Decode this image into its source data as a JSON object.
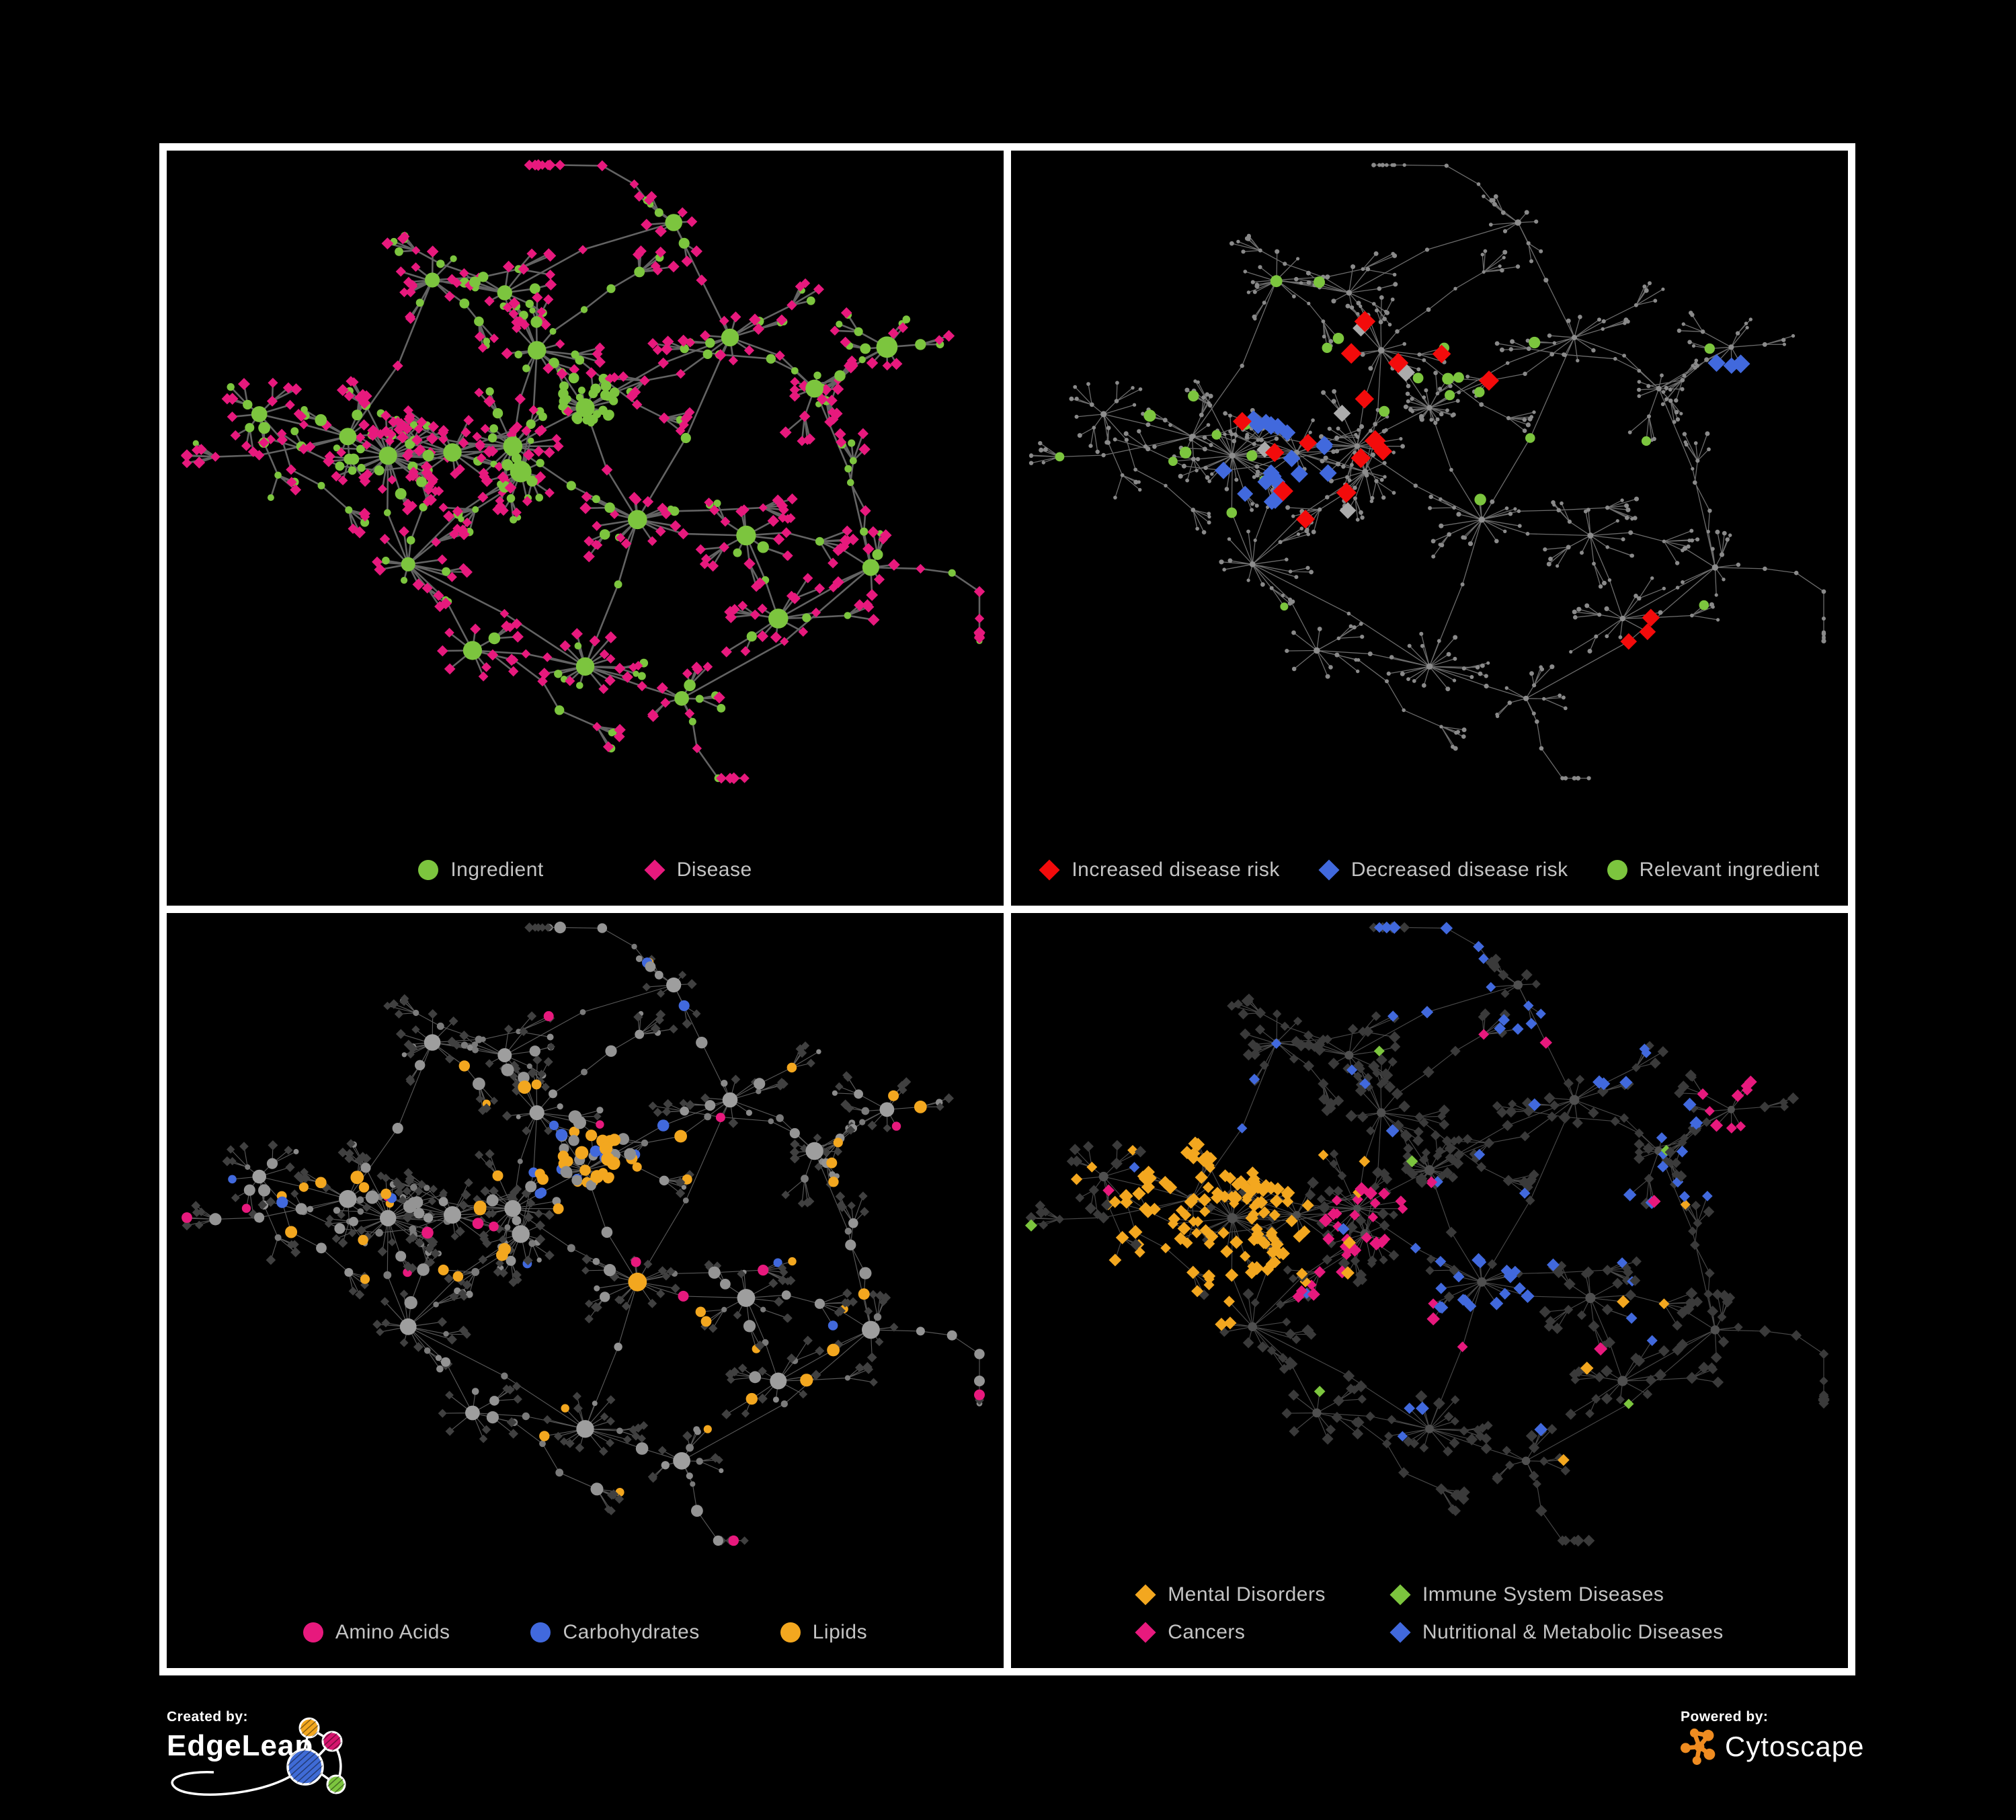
{
  "page": {
    "background": "#000000",
    "frame_color": "#ffffff"
  },
  "palette": {
    "green": "#7cc53e",
    "magenta": "#e7197d",
    "red": "#f30b0b",
    "blue": "#4169dd",
    "amber": "#f3a71f",
    "silver": "#ababab",
    "legend_text": "#c4c4c4"
  },
  "footer": {
    "created_by_label": "Created by:",
    "created_by_brand": "EdgeLeap",
    "powered_by_label": "Powered by:",
    "powered_by_brand": "Cytoscape",
    "cytoscape_logo_color": "#ef8c21",
    "edgeleap_logo_colors": [
      "#f3a71f",
      "#d6146e",
      "#3f6bd6",
      "#7cc53e"
    ]
  },
  "panels": [
    {
      "id": "ingredient-disease",
      "legend_rows": [
        [
          {
            "label": "Ingredient",
            "shape": "circle",
            "color": "#7cc53e"
          },
          {
            "label": "Disease",
            "shape": "diamond",
            "color": "#e7197d"
          }
        ]
      ],
      "legend_gap": 150,
      "style_seed": 11,
      "edge": {
        "color": "#6b6b6b",
        "width": 2.6,
        "opacity": 0.92
      },
      "rules": [
        {
          "roles": [
            "hub"
          ],
          "shape": "circle",
          "color": "#7cc53e",
          "size": [
            10,
            17
          ]
        },
        {
          "roles": [
            "leaf",
            "mid",
            "chain"
          ],
          "zone": [
            0.5,
            0.39,
            0.055
          ],
          "prob": 0.85,
          "shape": "circle",
          "color": "#7cc53e",
          "size": [
            5,
            8
          ]
        },
        {
          "roles": [
            "mid"
          ],
          "prob": 0.6,
          "shape": "circle",
          "color": "#7cc53e",
          "size": [
            6,
            9
          ]
        },
        {
          "roles": [
            "mid"
          ],
          "shape": "diamond",
          "color": "#e7197d",
          "size": [
            7,
            9
          ]
        },
        {
          "roles": [
            "chain"
          ],
          "prob": 0.45,
          "shape": "circle",
          "color": "#7cc53e",
          "size": [
            5,
            8
          ]
        },
        {
          "roles": [
            "chain"
          ],
          "shape": "diamond",
          "color": "#e7197d",
          "size": [
            6.5,
            8.5
          ]
        },
        {
          "roles": [
            "leaf"
          ],
          "prob": 0.16,
          "shape": "circle",
          "color": "#7cc53e",
          "size": [
            4.5,
            6.5
          ]
        },
        {
          "roles": [
            "leaf"
          ],
          "shape": "diamond",
          "color": "#e7197d",
          "size": [
            7,
            9
          ]
        }
      ]
    },
    {
      "id": "disease-risk",
      "legend_rows": [
        [
          {
            "label": "Increased disease risk",
            "shape": "diamond",
            "color": "#f30b0b"
          },
          {
            "label": "Decreased disease risk",
            "shape": "diamond",
            "color": "#4169dd"
          },
          {
            "label": "Relevant ingredient",
            "shape": "circle",
            "color": "#7cc53e"
          }
        ]
      ],
      "legend_gap": 58,
      "style_seed": 22,
      "edge": {
        "color": "#7e7e7e",
        "width": 1.3,
        "opacity": 0.85
      },
      "rules": [
        {
          "roles": [
            "hub"
          ],
          "shape": "circle",
          "color": "#8d8d8d",
          "size": [
            4,
            5
          ]
        },
        {
          "zone": [
            0.875,
            0.345,
            0.035
          ],
          "prob": 0.85,
          "shape": "diamond",
          "color": "#4169dd",
          "size": [
            12,
            14
          ]
        },
        {
          "zone": [
            0.44,
            0.41,
            0.19
          ],
          "prob": 0.075,
          "shape": "diamond",
          "color": "#f30b0b",
          "size": [
            13,
            16
          ]
        },
        {
          "zone": [
            0.77,
            0.74,
            0.055
          ],
          "prob": 0.3,
          "shape": "diamond",
          "color": "#f30b0b",
          "size": [
            12,
            14
          ]
        },
        {
          "zone": [
            0.32,
            0.47,
            0.08
          ],
          "prob": 0.22,
          "shape": "diamond",
          "color": "#4169dd",
          "size": [
            12,
            14
          ]
        },
        {
          "zone": [
            0.43,
            0.44,
            0.21
          ],
          "prob": 0.022,
          "shape": "diamond",
          "color": "#ababab",
          "size": [
            12,
            15
          ]
        },
        {
          "zone": [
            0.4,
            0.41,
            0.27
          ],
          "prob": 0.06,
          "shape": "circle",
          "color": "#7cc53e",
          "size": [
            7,
            9
          ]
        },
        {
          "prob": 0.01,
          "shape": "circle",
          "color": "#7cc53e",
          "size": [
            6,
            8
          ]
        },
        {
          "shape": "circle",
          "color": "#8a8a8a",
          "size": [
            2.6,
            3.6
          ]
        }
      ]
    },
    {
      "id": "nutrient-classes",
      "legend_rows": [
        [
          {
            "label": "Amino Acids",
            "shape": "circle",
            "color": "#e7197d"
          },
          {
            "label": "Carbohydrates",
            "shape": "circle",
            "color": "#4169dd"
          },
          {
            "label": "Lipids",
            "shape": "circle",
            "color": "#f3a71f"
          }
        ]
      ],
      "legend_gap": 120,
      "style_seed": 33,
      "edge": {
        "color": "#a0a0a0",
        "width": 1.15,
        "opacity": 0.55
      },
      "rules": [
        {
          "roles": [
            "hub",
            "mid"
          ],
          "zone": [
            0.565,
            0.565,
            0.035
          ],
          "shape": "circle",
          "color": "#f3a71f",
          "size": [
            11,
            14
          ]
        },
        {
          "zone": [
            0.5,
            0.39,
            0.07
          ],
          "prob": 0.45,
          "shape": "circle",
          "color": "#f3a71f",
          "size": [
            7,
            10
          ]
        },
        {
          "zone": [
            0.5,
            0.39,
            0.07
          ],
          "prob": 0.35,
          "shape": "circle",
          "color": "#4169dd",
          "size": [
            7,
            9
          ]
        },
        {
          "zone": [
            0.5,
            0.39,
            0.07
          ],
          "shape": "circle",
          "color": "#8f8f8f",
          "size": [
            6,
            9
          ]
        },
        {
          "roles": [
            "hub"
          ],
          "shape": "circle",
          "color": "#9e9e9e",
          "size": [
            10,
            14
          ]
        },
        {
          "roles": [
            "mid",
            "chain"
          ],
          "prob": 0.12,
          "shape": "circle",
          "color": "#f3a71f",
          "size": [
            7,
            10
          ]
        },
        {
          "roles": [
            "mid",
            "chain"
          ],
          "prob": 0.04,
          "shape": "circle",
          "color": "#e7197d",
          "size": [
            7,
            9
          ]
        },
        {
          "roles": [
            "mid",
            "chain"
          ],
          "prob": 0.03,
          "shape": "circle",
          "color": "#4169dd",
          "size": [
            7,
            9
          ]
        },
        {
          "roles": [
            "mid",
            "chain"
          ],
          "prob": 0.55,
          "shape": "circle",
          "color": "#949494",
          "size": [
            6,
            10
          ]
        },
        {
          "roles": [
            "mid",
            "chain"
          ],
          "shape": "circle",
          "color": "#7a7a7a",
          "size": [
            4,
            6
          ]
        },
        {
          "roles": [
            "leaf"
          ],
          "prob": 0.045,
          "shape": "circle",
          "color": "#f3a71f",
          "size": [
            6,
            8
          ]
        },
        {
          "roles": [
            "leaf"
          ],
          "prob": 0.028,
          "shape": "circle",
          "color": "#e7197d",
          "size": [
            6,
            8
          ]
        },
        {
          "roles": [
            "leaf"
          ],
          "prob": 0.012,
          "shape": "circle",
          "color": "#4169dd",
          "size": [
            6,
            8
          ]
        },
        {
          "roles": [
            "leaf"
          ],
          "prob": 0.12,
          "shape": "circle",
          "color": "#8a8a8a",
          "size": [
            3.5,
            5.5
          ]
        },
        {
          "roles": [
            "leaf"
          ],
          "shape": "diamond",
          "color": "#404040",
          "size": [
            6,
            7.5
          ]
        }
      ]
    },
    {
      "id": "disease-classes",
      "legend_rows": [
        [
          {
            "label": "Mental Disorders",
            "shape": "diamond",
            "color": "#f3a71f"
          },
          {
            "label": "Immune System Diseases",
            "shape": "diamond",
            "color": "#7cc53e"
          }
        ],
        [
          {
            "label": "Cancers",
            "shape": "diamond",
            "color": "#e7197d"
          },
          {
            "label": "Nutritional & Metabolic Diseases",
            "shape": "diamond",
            "color": "#4169dd"
          }
        ]
      ],
      "legend_gap": 96,
      "style_seed": 44,
      "edge": {
        "color": "#909090",
        "width": 1.15,
        "opacity": 0.5
      },
      "rules": [
        {
          "roles": [
            "hub"
          ],
          "shape": "circle",
          "color": "#4f4f4f",
          "size": [
            5.5,
            8
          ]
        },
        {
          "zone": [
            0.23,
            0.465,
            0.12
          ],
          "prob": 0.85,
          "shape": "diamond",
          "color": "#f3a71f",
          "size": [
            7.5,
            10.5
          ]
        },
        {
          "zone": [
            0.23,
            0.465,
            0.19
          ],
          "prob": 0.25,
          "shape": "diamond",
          "color": "#f3a71f",
          "size": [
            7.5,
            10
          ]
        },
        {
          "zone": [
            0.565,
            0.565,
            0.065
          ],
          "prob": 0.8,
          "shape": "diamond",
          "color": "#4169dd",
          "size": [
            7.5,
            10.5
          ]
        },
        {
          "zone": [
            0.44,
            0.53,
            0.12
          ],
          "prob": 0.5,
          "shape": "diamond",
          "color": "#e7197d",
          "size": [
            7.5,
            10.5
          ]
        },
        {
          "zone": [
            0.52,
            0.61,
            0.07
          ],
          "prob": 0.3,
          "shape": "diamond",
          "color": "#e7197d",
          "size": [
            7.5,
            10
          ]
        },
        {
          "zone": [
            0.88,
            0.28,
            0.05
          ],
          "prob": 0.7,
          "shape": "diamond",
          "color": "#e7197d",
          "size": [
            7.5,
            10
          ]
        },
        {
          "zone": [
            0.82,
            0.38,
            0.11
          ],
          "prob": 0.35,
          "shape": "diamond",
          "color": "#4169dd",
          "size": [
            7.5,
            10
          ]
        },
        {
          "zone": [
            0.7,
            0.15,
            0.13
          ],
          "prob": 0.3,
          "shape": "diamond",
          "color": "#4169dd",
          "size": [
            7.5,
            10
          ]
        },
        {
          "zone": [
            0.48,
            0.08,
            0.1
          ],
          "prob": 0.4,
          "shape": "diamond",
          "color": "#4169dd",
          "size": [
            7.5,
            10
          ]
        },
        {
          "prob": 0.05,
          "shape": "diamond",
          "color": "#4169dd",
          "size": [
            7.5,
            10
          ]
        },
        {
          "prob": 0.022,
          "shape": "diamond",
          "color": "#e7197d",
          "size": [
            7.5,
            10
          ]
        },
        {
          "prob": 0.02,
          "shape": "diamond",
          "color": "#f3a71f",
          "size": [
            7.5,
            10
          ]
        },
        {
          "prob": 0.015,
          "shape": "diamond",
          "color": "#7cc53e",
          "size": [
            7.5,
            10
          ]
        },
        {
          "shape": "diamond",
          "color": "#3a3a3a",
          "size": [
            6.5,
            9
          ]
        }
      ]
    }
  ],
  "topology": {
    "seed": 1337,
    "hubs": [
      [
        0.255,
        0.465,
        24,
        0.075,
        1,
        0.25
      ],
      [
        0.335,
        0.46,
        14,
        0.06,
        1,
        0.25
      ],
      [
        0.41,
        0.45,
        20,
        0.065,
        1,
        0.25
      ],
      [
        0.5,
        0.39,
        24,
        0.038,
        0,
        0.05
      ],
      [
        0.42,
        0.49,
        12,
        0.055,
        1,
        0.2
      ],
      [
        0.44,
        0.3,
        10,
        0.05,
        2,
        0.3
      ],
      [
        0.28,
        0.635,
        12,
        0.06,
        1,
        0.25
      ],
      [
        0.5,
        0.795,
        18,
        0.06,
        0,
        0.06
      ],
      [
        0.565,
        0.565,
        16,
        0.055,
        1,
        0.1
      ],
      [
        0.68,
        0.28,
        9,
        0.05,
        2,
        0.3
      ],
      [
        0.785,
        0.36,
        8,
        0.05,
        1,
        0.3
      ],
      [
        0.875,
        0.295,
        8,
        0.045,
        1,
        0.25
      ],
      [
        0.205,
        0.435,
        9,
        0.05,
        1,
        0.3
      ],
      [
        0.7,
        0.59,
        9,
        0.05,
        1,
        0.3
      ],
      [
        0.74,
        0.72,
        9,
        0.05,
        1,
        0.25
      ],
      [
        0.31,
        0.19,
        7,
        0.05,
        2,
        0.35
      ],
      [
        0.4,
        0.21,
        7,
        0.05,
        2,
        0.35
      ],
      [
        0.095,
        0.4,
        6,
        0.045,
        2,
        0.3
      ],
      [
        0.61,
        0.1,
        6,
        0.045,
        1,
        0.3
      ],
      [
        0.855,
        0.64,
        7,
        0.05,
        2,
        0.3
      ],
      [
        0.36,
        0.77,
        8,
        0.05,
        1,
        0.25
      ],
      [
        0.62,
        0.845,
        5,
        0.04,
        1,
        0.3
      ]
    ],
    "connectors": [
      [
        0,
        1
      ],
      [
        1,
        2
      ],
      [
        2,
        4
      ],
      [
        2,
        3
      ],
      [
        3,
        8
      ],
      [
        4,
        5
      ],
      [
        5,
        16
      ],
      [
        16,
        15
      ],
      [
        15,
        12
      ],
      [
        12,
        17
      ],
      [
        0,
        12
      ],
      [
        0,
        6
      ],
      [
        6,
        20
      ],
      [
        20,
        7
      ],
      [
        7,
        8
      ],
      [
        8,
        13
      ],
      [
        13,
        14
      ],
      [
        14,
        19
      ],
      [
        19,
        21
      ],
      [
        2,
        5
      ],
      [
        4,
        6
      ],
      [
        8,
        9
      ],
      [
        9,
        10
      ],
      [
        10,
        11
      ],
      [
        9,
        18
      ],
      [
        18,
        16
      ],
      [
        3,
        9
      ],
      [
        1,
        4
      ],
      [
        2,
        8
      ],
      [
        7,
        21
      ],
      [
        6,
        7
      ],
      [
        10,
        19
      ],
      [
        0,
        2
      ],
      [
        3,
        5
      ]
    ]
  }
}
